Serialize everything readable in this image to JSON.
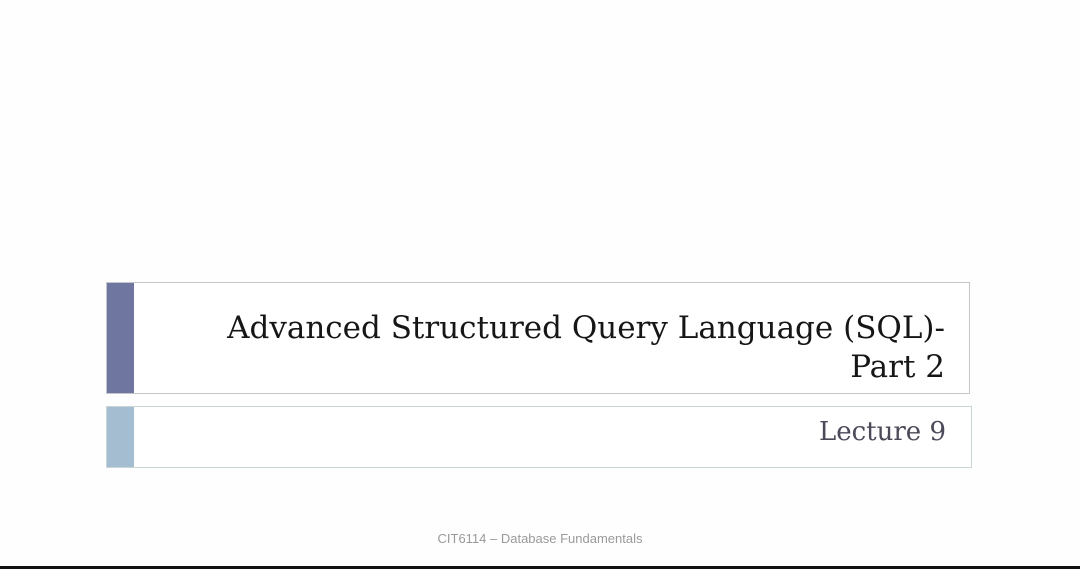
{
  "slide": {
    "title": "Advanced Structured Query Language (SQL)-Part 2",
    "title_line1": "Advanced Structured Query Language (SQL)-",
    "title_line2": "Part 2",
    "subtitle": "Lecture 9",
    "footer": "CIT6114 – Database Fundamentals"
  },
  "colors": {
    "title_accent": "#6f77a0",
    "subtitle_accent": "#a4bdd0",
    "background": "#fefefe"
  }
}
